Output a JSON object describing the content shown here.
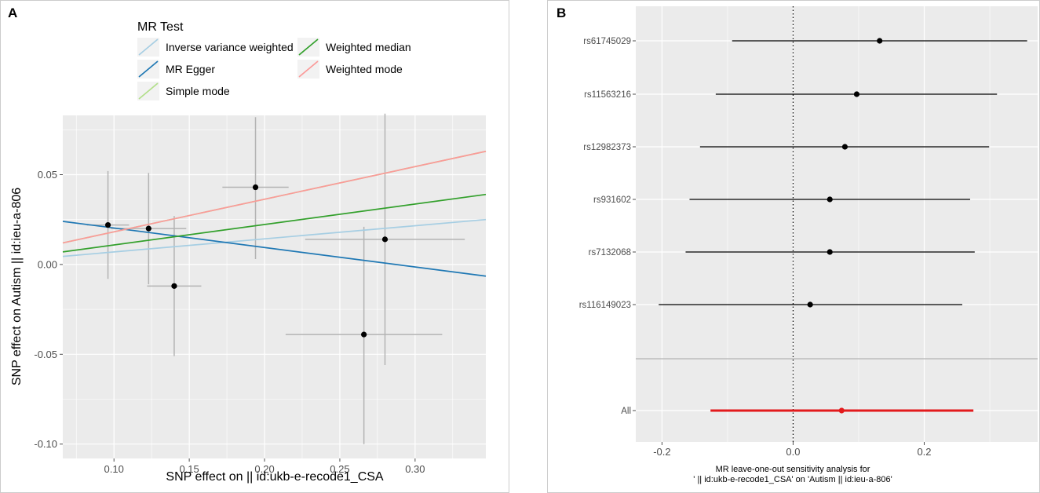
{
  "chart_data": [
    {
      "panel": "A",
      "type": "scatter",
      "xlabel": "SNP effect on  || id:ukb-e-recode1_CSA",
      "ylabel": "SNP effect on Autism || id:ieu-a-806",
      "xlim": [
        0.066,
        0.347
      ],
      "ylim": [
        -0.108,
        0.083
      ],
      "xticks": [
        0.1,
        0.15,
        0.2,
        0.25,
        0.3
      ],
      "xtick_labels": [
        "0.10",
        "0.15",
        "0.20",
        "0.25",
        "0.30"
      ],
      "yticks": [
        0.05,
        0.0,
        -0.05,
        -0.1
      ],
      "ytick_labels": [
        "0.05",
        "0.00",
        "-0.05",
        "-0.10"
      ],
      "points": [
        {
          "x": 0.096,
          "y": 0.022,
          "x_lo": 0.082,
          "x_hi": 0.11,
          "y_lo": -0.008,
          "y_hi": 0.052
        },
        {
          "x": 0.123,
          "y": 0.02,
          "x_lo": 0.098,
          "x_hi": 0.148,
          "y_lo": -0.011,
          "y_hi": 0.051
        },
        {
          "x": 0.14,
          "y": -0.012,
          "x_lo": 0.122,
          "x_hi": 0.158,
          "y_lo": -0.051,
          "y_hi": 0.027
        },
        {
          "x": 0.194,
          "y": 0.043,
          "x_lo": 0.172,
          "x_hi": 0.216,
          "y_lo": 0.003,
          "y_hi": 0.082
        },
        {
          "x": 0.266,
          "y": -0.039,
          "x_lo": 0.214,
          "x_hi": 0.318,
          "y_lo": -0.1,
          "y_hi": 0.021
        },
        {
          "x": 0.28,
          "y": 0.014,
          "x_lo": 0.227,
          "x_hi": 0.333,
          "y_lo": -0.056,
          "y_hi": 0.084
        }
      ],
      "legend_title": "MR Test",
      "series": [
        {
          "name": "Inverse variance weighted",
          "color": "#a6cee3",
          "x0": 0.066,
          "y0": 0.0045,
          "x1": 0.347,
          "y1": 0.025
        },
        {
          "name": "MR Egger",
          "color": "#1f78b4",
          "x0": 0.066,
          "y0": 0.024,
          "x1": 0.347,
          "y1": -0.0065
        },
        {
          "name": "Simple mode",
          "color": "#b2df8a",
          "x0": 0.066,
          "y0": 0.012,
          "x1": 0.347,
          "y1": 0.063
        },
        {
          "name": "Weighted median",
          "color": "#33a02c",
          "x0": 0.066,
          "y0": 0.007,
          "x1": 0.347,
          "y1": 0.039
        },
        {
          "name": "Weighted mode",
          "color": "#fb9a99",
          "x0": 0.066,
          "y0": 0.012,
          "x1": 0.347,
          "y1": 0.063
        }
      ]
    },
    {
      "panel": "B",
      "type": "forest",
      "xlabel_line1": "MR leave-one-out sensitivity analysis for",
      "xlabel_line2": "' || id:ukb-e-recode1_CSA' on 'Autism || id:ieu-a-806'",
      "xlim": [
        -0.24,
        0.373
      ],
      "xticks": [
        -0.2,
        0.0,
        0.2
      ],
      "xtick_labels": [
        "-0.2",
        "0.0",
        "0.2"
      ],
      "reference_line": 0,
      "rows": [
        {
          "label": "rs61745029",
          "estimate": 0.132,
          "lo": -0.093,
          "hi": 0.357,
          "color": "#000000"
        },
        {
          "label": "rs11563216",
          "estimate": 0.097,
          "lo": -0.118,
          "hi": 0.311,
          "color": "#000000"
        },
        {
          "label": "rs12982373",
          "estimate": 0.079,
          "lo": -0.142,
          "hi": 0.299,
          "color": "#000000"
        },
        {
          "label": "rs931602",
          "estimate": 0.056,
          "lo": -0.158,
          "hi": 0.27,
          "color": "#000000"
        },
        {
          "label": "rs7132068",
          "estimate": 0.056,
          "lo": -0.164,
          "hi": 0.277,
          "color": "#000000"
        },
        {
          "label": "rs116149023",
          "estimate": 0.026,
          "lo": -0.205,
          "hi": 0.258,
          "color": "#000000"
        },
        {
          "label": "All",
          "estimate": 0.074,
          "lo": -0.126,
          "hi": 0.275,
          "color": "#e31a1c"
        }
      ]
    }
  ],
  "panel_labels": [
    "A",
    "B"
  ]
}
